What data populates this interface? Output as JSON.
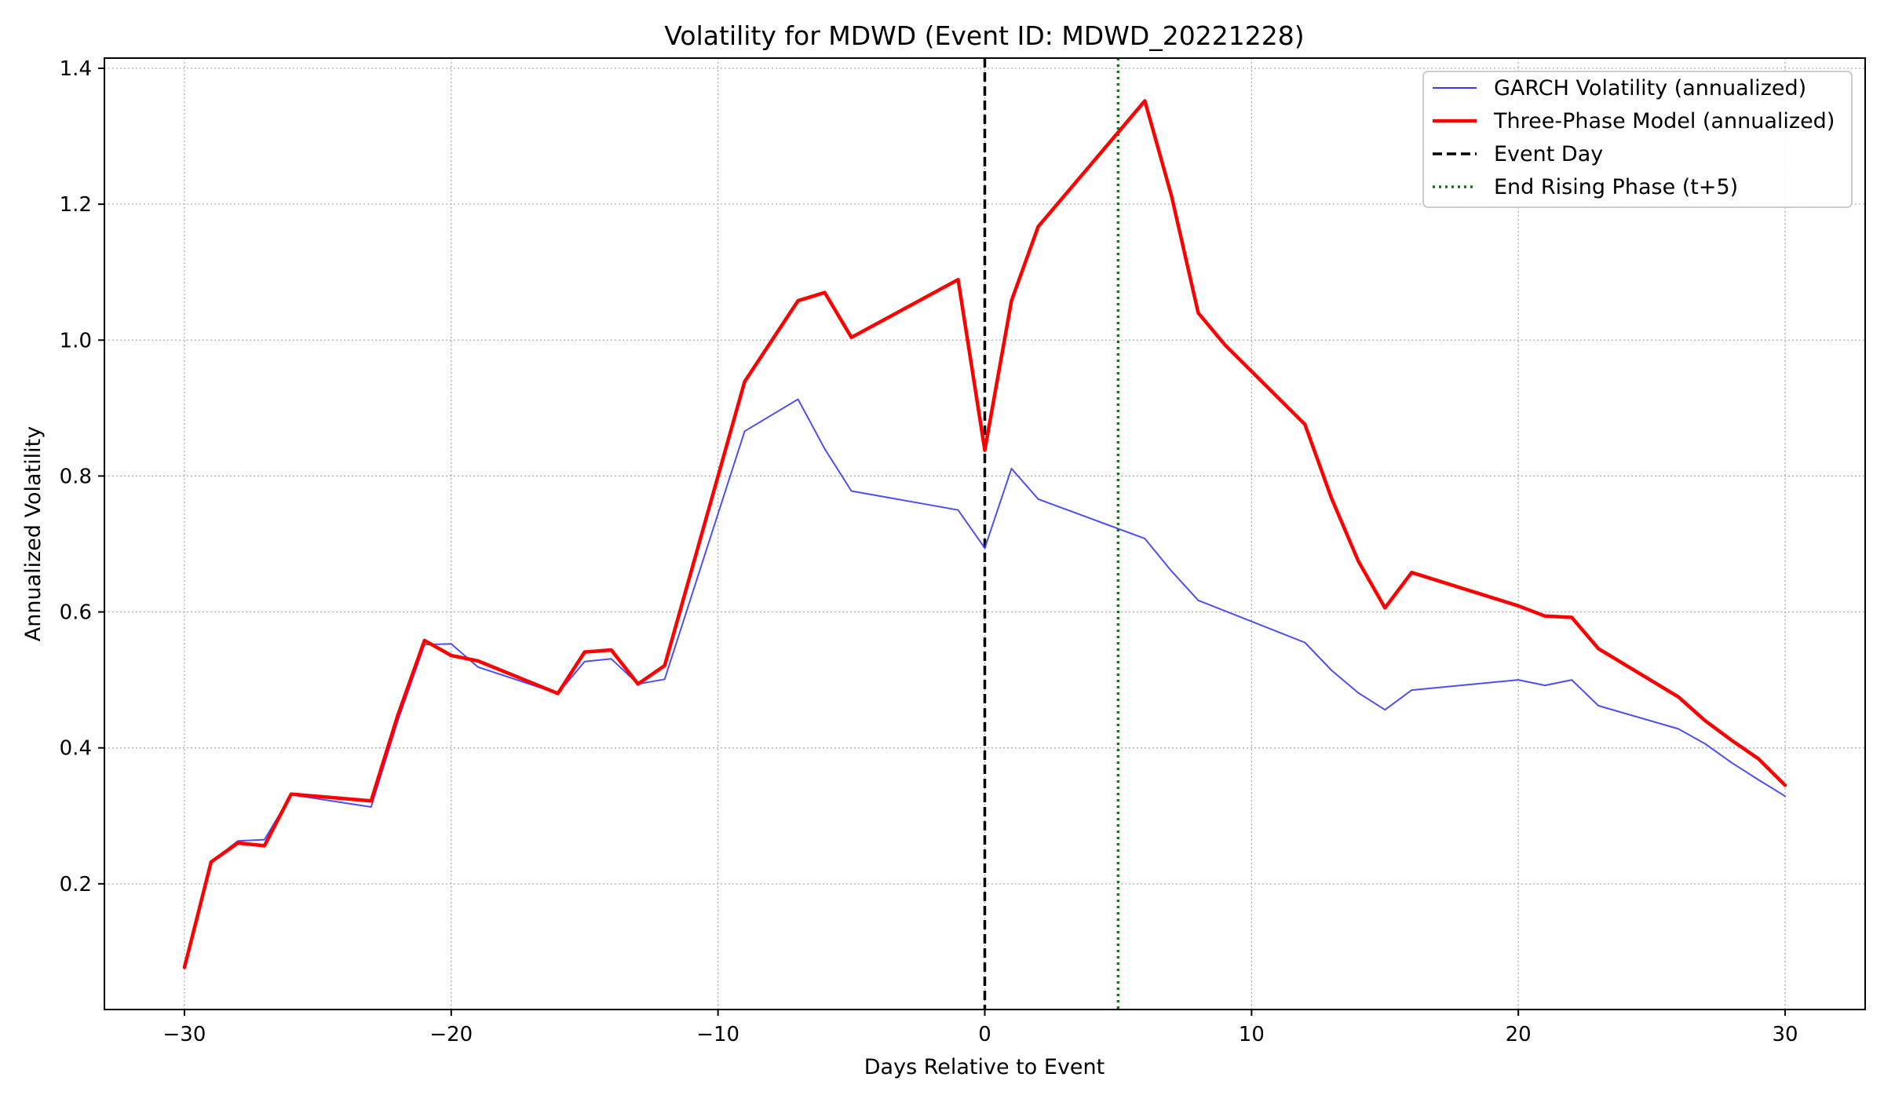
{
  "chart_data": {
    "type": "line",
    "title": "Volatility for MDWD (Event ID: MDWD_20221228)",
    "xlabel": "Days Relative to Event",
    "ylabel": "Annualized Volatility",
    "xlim": [
      -33,
      33
    ],
    "ylim": [
      0.015,
      1.415
    ],
    "xticks": [
      -30,
      -20,
      -10,
      0,
      10,
      20,
      30
    ],
    "xtick_labels": [
      "−30",
      "−20",
      "−10",
      "0",
      "10",
      "20",
      "30"
    ],
    "yticks": [
      0.2,
      0.4,
      0.6,
      0.8,
      1.0,
      1.2,
      1.4
    ],
    "ytick_labels": [
      "0.2",
      "0.4",
      "0.6",
      "0.8",
      "1.0",
      "1.2",
      "1.4"
    ],
    "grid": true,
    "legend_position": "top-right",
    "series": [
      {
        "name": "GARCH Volatility (annualized)",
        "color": "#3b3bf5",
        "style": "solid-thin",
        "x": [
          -30,
          -29,
          -28,
          -27,
          -26,
          -23,
          -22,
          -21,
          -20,
          -19,
          -16,
          -15,
          -14,
          -13,
          -12,
          -9,
          -7,
          -6,
          -5,
          -1,
          0,
          1,
          2,
          6,
          7,
          8,
          12,
          13,
          14,
          15,
          16,
          20,
          21,
          22,
          23,
          26,
          27,
          28,
          29,
          30
        ],
        "values": [
          0.077,
          0.232,
          0.263,
          0.265,
          0.331,
          0.313,
          0.44,
          0.552,
          0.553,
          0.519,
          0.48,
          0.527,
          0.531,
          0.494,
          0.501,
          0.866,
          0.913,
          0.84,
          0.778,
          0.75,
          0.694,
          0.811,
          0.766,
          0.708,
          0.66,
          0.617,
          0.555,
          0.514,
          0.481,
          0.456,
          0.485,
          0.5,
          0.492,
          0.5,
          0.462,
          0.428,
          0.406,
          0.378,
          0.353,
          0.329
        ]
      },
      {
        "name": "Three-Phase Model (annualized)",
        "color": "#ff0000",
        "style": "solid-thick",
        "x": [
          -30,
          -29,
          -28,
          -27,
          -26,
          -23,
          -22,
          -21,
          -20,
          -19,
          -16,
          -15,
          -14,
          -13,
          -12,
          -9,
          -7,
          -6,
          -5,
          -1,
          0,
          1,
          2,
          6,
          7,
          8,
          9,
          12,
          13,
          14,
          15,
          16,
          20,
          21,
          22,
          23,
          26,
          27,
          28,
          29,
          30
        ],
        "values": [
          0.077,
          0.232,
          0.26,
          0.256,
          0.332,
          0.322,
          0.448,
          0.558,
          0.536,
          0.528,
          0.48,
          0.541,
          0.544,
          0.494,
          0.521,
          0.939,
          1.058,
          1.07,
          1.004,
          1.089,
          0.838,
          1.058,
          1.167,
          1.352,
          1.212,
          1.04,
          0.993,
          0.876,
          0.767,
          0.675,
          0.606,
          0.658,
          0.609,
          0.594,
          0.592,
          0.546,
          0.475,
          0.44,
          0.411,
          0.384,
          0.345
        ]
      }
    ],
    "vlines": [
      {
        "name": "Event Day",
        "x": 0,
        "color": "#000000",
        "style": "dashed"
      },
      {
        "name": "End Rising Phase (t+5)",
        "x": 5,
        "color": "#008000",
        "style": "dotted"
      }
    ]
  }
}
